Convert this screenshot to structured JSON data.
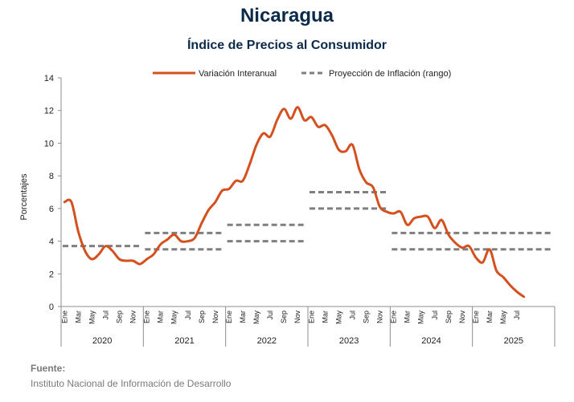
{
  "header": {
    "title": "Nicaragua",
    "subtitle": "Índice de Precios al Consumidor"
  },
  "source": {
    "heading": "Fuente:",
    "text": "Instituto Nacional de Información de Desarrollo"
  },
  "colors": {
    "series_line": "#d4501e",
    "projection": "#7f7f7f",
    "axis": "#8c8c8c",
    "title": "#0b2a4a"
  },
  "chart_data": {
    "type": "line",
    "title": "Índice de Precios al Consumidor",
    "ylabel": "Porcentajes",
    "ylim": [
      0,
      14
    ],
    "yticks": [
      0,
      2,
      4,
      6,
      8,
      10,
      12,
      14
    ],
    "grid": false,
    "legend_position": "top",
    "month_labels": [
      "Ene",
      "Mar",
      "May",
      "Jul",
      "Sep",
      "Nov"
    ],
    "years": [
      "2020",
      "2021",
      "2022",
      "2023",
      "2024",
      "2025"
    ],
    "last_year_month_labels": [
      "Ene",
      "Mar",
      "May",
      "Jul"
    ],
    "series": [
      {
        "name": "Variación Interanual",
        "style": "solid",
        "x_start": "2020-01",
        "values": [
          6.4,
          6.4,
          4.6,
          3.4,
          2.9,
          3.2,
          3.7,
          3.4,
          2.9,
          2.8,
          2.8,
          2.6,
          2.9,
          3.2,
          3.8,
          4.1,
          4.4,
          4.0,
          4.0,
          4.2,
          5.1,
          5.9,
          6.4,
          7.1,
          7.2,
          7.7,
          7.7,
          8.7,
          9.9,
          10.6,
          10.4,
          11.4,
          12.1,
          11.5,
          12.2,
          11.4,
          11.6,
          11.0,
          11.1,
          10.5,
          9.6,
          9.5,
          9.9,
          8.4,
          7.6,
          7.3,
          6.1,
          5.8,
          5.7,
          5.8,
          5.0,
          5.4,
          5.5,
          5.5,
          4.8,
          5.3,
          4.4,
          3.9,
          3.6,
          3.7,
          3.0,
          2.7,
          3.5,
          2.2,
          1.8,
          1.3,
          0.9,
          0.6
        ]
      },
      {
        "name": "Proyección de Inflación (rango)",
        "style": "dashed",
        "ranges": [
          {
            "year": "2020",
            "low": 3.7,
            "high": 3.7
          },
          {
            "year": "2021",
            "low": 3.5,
            "high": 4.5
          },
          {
            "year": "2022",
            "low": 4.0,
            "high": 5.0
          },
          {
            "year": "2023",
            "low": 6.0,
            "high": 7.0
          },
          {
            "year": "2024",
            "low": 3.5,
            "high": 4.5
          },
          {
            "year": "2025",
            "low": 3.5,
            "high": 4.5
          }
        ]
      }
    ]
  }
}
